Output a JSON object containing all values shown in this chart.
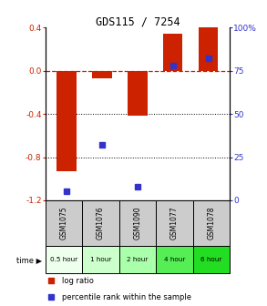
{
  "title": "GDS115 / 7254",
  "categories": [
    "GSM1075",
    "GSM1076",
    "GSM1090",
    "GSM1077",
    "GSM1078"
  ],
  "time_labels": [
    "0.5 hour",
    "1 hour",
    "2 hour",
    "4 hour",
    "6 hour"
  ],
  "log_ratios": [
    -0.93,
    -0.07,
    -0.42,
    0.34,
    0.4
  ],
  "percentile_ranks": [
    5,
    32,
    8,
    78,
    82
  ],
  "ylim_left": [
    -1.2,
    0.4
  ],
  "ylim_right": [
    0,
    100
  ],
  "left_yticks": [
    -1.2,
    -0.8,
    -0.4,
    0.0,
    0.4
  ],
  "right_yticks": [
    0,
    25,
    50,
    75,
    100
  ],
  "right_yticklabels": [
    "0",
    "25",
    "50",
    "75",
    "100%"
  ],
  "bar_color": "#cc2200",
  "dot_color": "#3333cc",
  "dashed_color": "#cc2200",
  "grid_color": "#000000",
  "time_colors": [
    "#eeffee",
    "#ccffcc",
    "#aaffaa",
    "#55ee55",
    "#22dd22"
  ],
  "gsm_bg": "#cccccc",
  "legend_log_ratio": "log ratio",
  "legend_percentile": "percentile rank within the sample"
}
